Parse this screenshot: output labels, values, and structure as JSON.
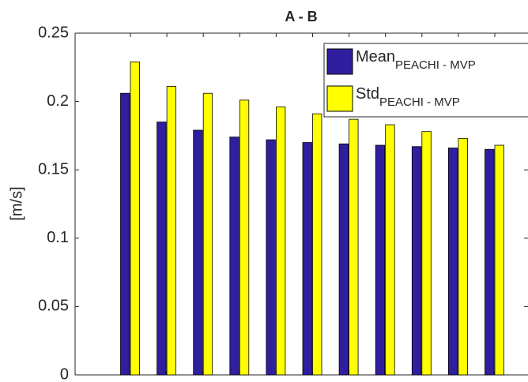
{
  "chart_data": {
    "type": "bar",
    "title": "A - B",
    "ylabel": "[m/s]",
    "categories": [
      null,
      null,
      null,
      null,
      null,
      null,
      null,
      null,
      null,
      null,
      null
    ],
    "series": [
      {
        "name": "Mean",
        "name_subscript": "PEACHI - MVP",
        "color": "#2f1f9e",
        "values": [
          0.206,
          0.185,
          0.179,
          0.174,
          0.172,
          0.17,
          0.169,
          0.168,
          0.167,
          0.166,
          0.165
        ]
      },
      {
        "name": "Std",
        "name_subscript": "PEACHI - MVP",
        "color": "#ffff00",
        "values": [
          0.229,
          0.211,
          0.206,
          0.201,
          0.196,
          0.191,
          0.187,
          0.183,
          0.178,
          0.173,
          0.168
        ]
      }
    ],
    "ylim": [
      0,
      0.25
    ],
    "yticks": [
      0,
      0.05,
      0.1,
      0.15,
      0.2,
      0.25
    ],
    "grid": false,
    "legend": "northeast"
  }
}
